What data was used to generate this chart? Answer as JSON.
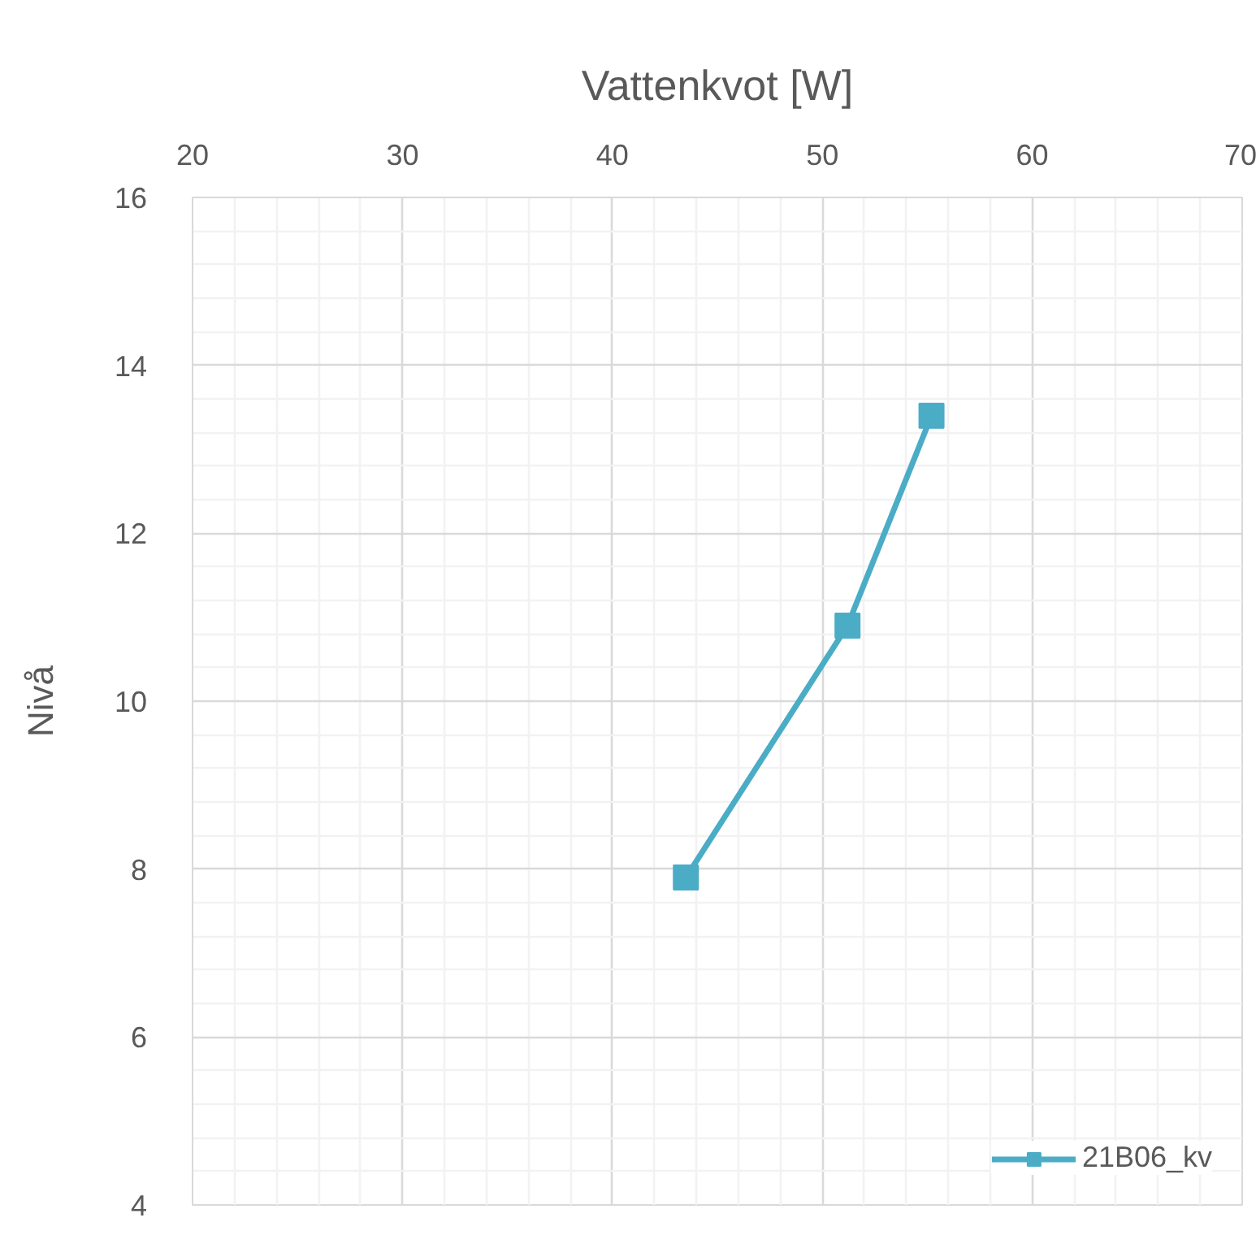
{
  "chart_data": {
    "type": "line",
    "xlabel": "Vattenkvot [W]",
    "ylabel": "Nivå",
    "xlim": [
      20,
      70
    ],
    "xticks": [
      20,
      30,
      40,
      50,
      60,
      70
    ],
    "ylim": [
      4,
      16
    ],
    "yticks": [
      4,
      6,
      8,
      10,
      12,
      14,
      16
    ],
    "series": [
      {
        "name": "21B06_kv",
        "color": "#4bacc6",
        "x": [
          43.5,
          51.2,
          55.2
        ],
        "values": [
          7.9,
          10.9,
          13.4
        ]
      }
    ],
    "marker": "square",
    "grid": true,
    "legend": "bottom right"
  }
}
